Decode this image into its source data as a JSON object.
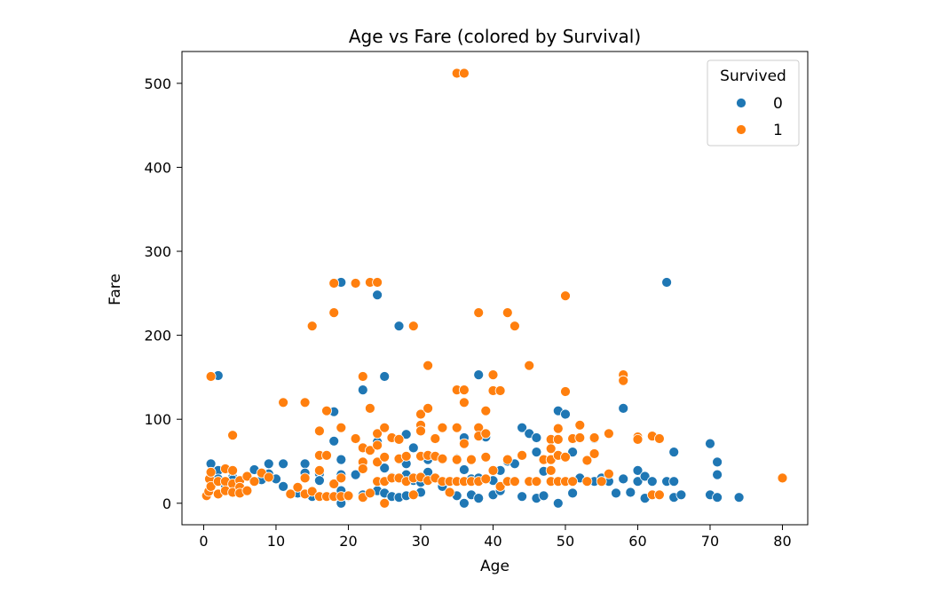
{
  "chart_data": {
    "type": "scatter",
    "title": "Age vs Fare (colored by Survival)",
    "xlabel": "Age",
    "ylabel": "Fare",
    "xlim": [
      -3,
      83.5
    ],
    "ylim": [
      -25.6,
      537.9
    ],
    "xticks": [
      0,
      10,
      20,
      30,
      40,
      50,
      60,
      70,
      80
    ],
    "yticks": [
      0,
      100,
      200,
      300,
      400,
      500
    ],
    "grid": false,
    "legend": {
      "title": "Survived",
      "placement": "top-right",
      "entries": [
        {
          "label": "0",
          "color": "#1f77b4"
        },
        {
          "label": "1",
          "color": "#ff7f0e"
        }
      ]
    },
    "series": [
      {
        "name": "0",
        "color": "#1f77b4",
        "points": [
          [
            1,
            47
          ],
          [
            2,
            152
          ],
          [
            2,
            39
          ],
          [
            2,
            29
          ],
          [
            3,
            21
          ],
          [
            4,
            31
          ],
          [
            4,
            28
          ],
          [
            6,
            32
          ],
          [
            7,
            40
          ],
          [
            8,
            28
          ],
          [
            9,
            47
          ],
          [
            9,
            35
          ],
          [
            10,
            29
          ],
          [
            11,
            47
          ],
          [
            11,
            20
          ],
          [
            13,
            12
          ],
          [
            14,
            47
          ],
          [
            14,
            36
          ],
          [
            15,
            8
          ],
          [
            16,
            35
          ],
          [
            16,
            27
          ],
          [
            17,
            8
          ],
          [
            18,
            109
          ],
          [
            18,
            74
          ],
          [
            19,
            263
          ],
          [
            19,
            52
          ],
          [
            19,
            34
          ],
          [
            19,
            15
          ],
          [
            19,
            0
          ],
          [
            20,
            9
          ],
          [
            20,
            8
          ],
          [
            21,
            77
          ],
          [
            21,
            34
          ],
          [
            22,
            135
          ],
          [
            22,
            10
          ],
          [
            23,
            63
          ],
          [
            24,
            248
          ],
          [
            24,
            73
          ],
          [
            24,
            15
          ],
          [
            25,
            151
          ],
          [
            25,
            42
          ],
          [
            25,
            12
          ],
          [
            26,
            31
          ],
          [
            26,
            8
          ],
          [
            27,
            211
          ],
          [
            27,
            7
          ],
          [
            28,
            82
          ],
          [
            28,
            47
          ],
          [
            28,
            34
          ],
          [
            28,
            9
          ],
          [
            29,
            66
          ],
          [
            29,
            27
          ],
          [
            30,
            25
          ],
          [
            30,
            13
          ],
          [
            31,
            52
          ],
          [
            31,
            37
          ],
          [
            32,
            77
          ],
          [
            32,
            30
          ],
          [
            33,
            20
          ],
          [
            34,
            26
          ],
          [
            35,
            53
          ],
          [
            35,
            9
          ],
          [
            36,
            78
          ],
          [
            36,
            40
          ],
          [
            36,
            0
          ],
          [
            37,
            29
          ],
          [
            37,
            10
          ],
          [
            38,
            153
          ],
          [
            38,
            30
          ],
          [
            38,
            6
          ],
          [
            39,
            79
          ],
          [
            40,
            27
          ],
          [
            40,
            10
          ],
          [
            41,
            39
          ],
          [
            41,
            15
          ],
          [
            42,
            50
          ],
          [
            43,
            47
          ],
          [
            44,
            90
          ],
          [
            44,
            8
          ],
          [
            45,
            83
          ],
          [
            45,
            26
          ],
          [
            46,
            78
          ],
          [
            46,
            61
          ],
          [
            46,
            6
          ],
          [
            47,
            38
          ],
          [
            47,
            9
          ],
          [
            48,
            52
          ],
          [
            48,
            26
          ],
          [
            49,
            110
          ],
          [
            49,
            0
          ],
          [
            50,
            106
          ],
          [
            50,
            55
          ],
          [
            50,
            26
          ],
          [
            51,
            61
          ],
          [
            51,
            12
          ],
          [
            52,
            78
          ],
          [
            52,
            30
          ],
          [
            54,
            77
          ],
          [
            54,
            26
          ],
          [
            55,
            30
          ],
          [
            56,
            26
          ],
          [
            57,
            12
          ],
          [
            58,
            113
          ],
          [
            58,
            29
          ],
          [
            59,
            13
          ],
          [
            60,
            39
          ],
          [
            60,
            26
          ],
          [
            61,
            32
          ],
          [
            61,
            6
          ],
          [
            62,
            26
          ],
          [
            64,
            263
          ],
          [
            64,
            26
          ],
          [
            65,
            61
          ],
          [
            65,
            26
          ],
          [
            65,
            7
          ],
          [
            66,
            10
          ],
          [
            70,
            71
          ],
          [
            70,
            10
          ],
          [
            71,
            49
          ],
          [
            71,
            34
          ],
          [
            71,
            7
          ],
          [
            74,
            7
          ]
        ]
      },
      {
        "name": "1",
        "color": "#ff7f0e",
        "points": [
          [
            0.4,
            9
          ],
          [
            0.7,
            14
          ],
          [
            0.8,
            29
          ],
          [
            1,
            151
          ],
          [
            1,
            37
          ],
          [
            1,
            20
          ],
          [
            2,
            26
          ],
          [
            2,
            11
          ],
          [
            3,
            41
          ],
          [
            3,
            26
          ],
          [
            3,
            15
          ],
          [
            4,
            81
          ],
          [
            4,
            39
          ],
          [
            4,
            23
          ],
          [
            4,
            13
          ],
          [
            5,
            27
          ],
          [
            5,
            19
          ],
          [
            5,
            12
          ],
          [
            6,
            32
          ],
          [
            6,
            15
          ],
          [
            7,
            26
          ],
          [
            8,
            36
          ],
          [
            9,
            31
          ],
          [
            11,
            120
          ],
          [
            12,
            11
          ],
          [
            13,
            19
          ],
          [
            14,
            120
          ],
          [
            14,
            30
          ],
          [
            14,
            11
          ],
          [
            15,
            211
          ],
          [
            15,
            14
          ],
          [
            16,
            86
          ],
          [
            16,
            57
          ],
          [
            16,
            39
          ],
          [
            16,
            8
          ],
          [
            17,
            110
          ],
          [
            17,
            57
          ],
          [
            17,
            8
          ],
          [
            18,
            262
          ],
          [
            18,
            227
          ],
          [
            18,
            23
          ],
          [
            18,
            8
          ],
          [
            19,
            90
          ],
          [
            19,
            30
          ],
          [
            19,
            8
          ],
          [
            20,
            9
          ],
          [
            21,
            262
          ],
          [
            21,
            77
          ],
          [
            22,
            151
          ],
          [
            22,
            66
          ],
          [
            22,
            49
          ],
          [
            22,
            41
          ],
          [
            22,
            7
          ],
          [
            23,
            263
          ],
          [
            23,
            113
          ],
          [
            23,
            63
          ],
          [
            23,
            12
          ],
          [
            24,
            263
          ],
          [
            24,
            83
          ],
          [
            24,
            69
          ],
          [
            24,
            49
          ],
          [
            24,
            26
          ],
          [
            25,
            90
          ],
          [
            25,
            55
          ],
          [
            25,
            26
          ],
          [
            25,
            0
          ],
          [
            26,
            78
          ],
          [
            26,
            30
          ],
          [
            27,
            76
          ],
          [
            27,
            53
          ],
          [
            27,
            30
          ],
          [
            28,
            56
          ],
          [
            28,
            26
          ],
          [
            29,
            211
          ],
          [
            29,
            30
          ],
          [
            29,
            10
          ],
          [
            30,
            106
          ],
          [
            30,
            93
          ],
          [
            30,
            86
          ],
          [
            30,
            56
          ],
          [
            30,
            31
          ],
          [
            31,
            164
          ],
          [
            31,
            113
          ],
          [
            31,
            57
          ],
          [
            31,
            27
          ],
          [
            32,
            77
          ],
          [
            32,
            56
          ],
          [
            32,
            30
          ],
          [
            33,
            90
          ],
          [
            33,
            53
          ],
          [
            33,
            26
          ],
          [
            34,
            26
          ],
          [
            34,
            13
          ],
          [
            35,
            512
          ],
          [
            35,
            135
          ],
          [
            35,
            90
          ],
          [
            35,
            52
          ],
          [
            35,
            26
          ],
          [
            36,
            512
          ],
          [
            36,
            135
          ],
          [
            36,
            120
          ],
          [
            36,
            71
          ],
          [
            36,
            26
          ],
          [
            37,
            52
          ],
          [
            37,
            26
          ],
          [
            38,
            227
          ],
          [
            38,
            90
          ],
          [
            38,
            80
          ],
          [
            38,
            26
          ],
          [
            39,
            110
          ],
          [
            39,
            83
          ],
          [
            39,
            55
          ],
          [
            39,
            29
          ],
          [
            40,
            153
          ],
          [
            40,
            134
          ],
          [
            40,
            39
          ],
          [
            41,
            134
          ],
          [
            41,
            20
          ],
          [
            42,
            227
          ],
          [
            42,
            52
          ],
          [
            42,
            26
          ],
          [
            43,
            211
          ],
          [
            43,
            26
          ],
          [
            44,
            57
          ],
          [
            45,
            164
          ],
          [
            45,
            26
          ],
          [
            46,
            26
          ],
          [
            47,
            52
          ],
          [
            48,
            76
          ],
          [
            48,
            65
          ],
          [
            48,
            52
          ],
          [
            48,
            39
          ],
          [
            48,
            26
          ],
          [
            49,
            89
          ],
          [
            49,
            76
          ],
          [
            49,
            57
          ],
          [
            49,
            26
          ],
          [
            50,
            247
          ],
          [
            50,
            133
          ],
          [
            50,
            55
          ],
          [
            50,
            26
          ],
          [
            51,
            77
          ],
          [
            51,
            26
          ],
          [
            52,
            93
          ],
          [
            52,
            78
          ],
          [
            53,
            51
          ],
          [
            53,
            26
          ],
          [
            54,
            78
          ],
          [
            54,
            59
          ],
          [
            55,
            26
          ],
          [
            56,
            83
          ],
          [
            56,
            35
          ],
          [
            58,
            153
          ],
          [
            58,
            146
          ],
          [
            60,
            79
          ],
          [
            60,
            76
          ],
          [
            62,
            80
          ],
          [
            62,
            10
          ],
          [
            63,
            77
          ],
          [
            63,
            10
          ],
          [
            80,
            30
          ]
        ]
      }
    ]
  }
}
